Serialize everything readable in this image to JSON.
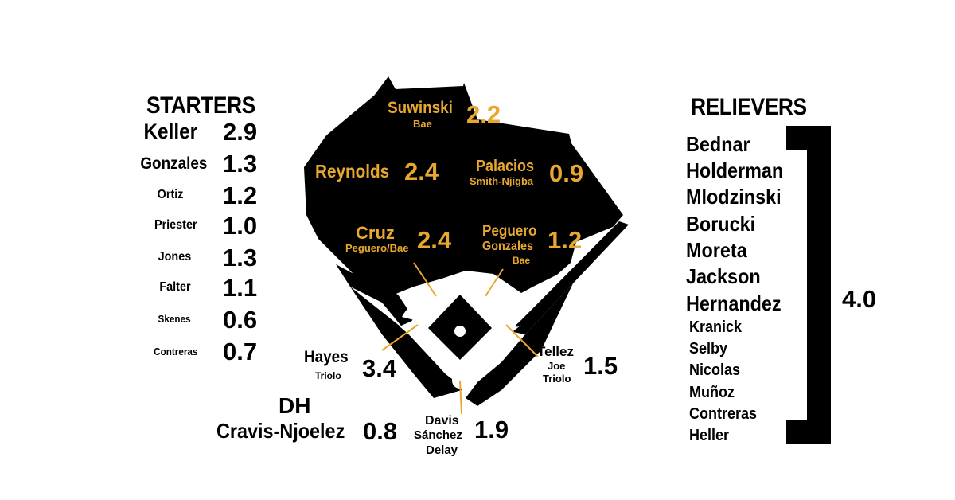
{
  "starters": {
    "title": "STARTERS",
    "rows": [
      {
        "name": "Keller",
        "war": "2.9"
      },
      {
        "name": "Gonzales",
        "war": "1.3"
      },
      {
        "name": "Ortiz",
        "war": "1.2"
      },
      {
        "name": "Priester",
        "war": "1.0"
      },
      {
        "name": "Jones",
        "war": "1.3"
      },
      {
        "name": "Falter",
        "war": "1.1"
      },
      {
        "name": "Skenes",
        "war": "0.6"
      },
      {
        "name": "Contreras",
        "war": "0.7"
      }
    ]
  },
  "relievers": {
    "title": "RELIEVERS",
    "names": [
      "Bednar",
      "Holderman",
      "Mlodzinski",
      "Borucki",
      "Moreta",
      "Jackson",
      "Hernandez",
      "Kranick",
      "Selby",
      "Nicolas",
      "Muñoz",
      "Contreras",
      "Heller"
    ],
    "total_war": "4.0"
  },
  "field": {
    "cf": {
      "name": "Suwinski",
      "sub": "Bae",
      "war": "2.2"
    },
    "lf": {
      "name": "Reynolds",
      "war": "2.4"
    },
    "rf": {
      "name": "Palacios",
      "sub": "Smith-Njigba",
      "war": "0.9"
    },
    "ss": {
      "name": "Cruz",
      "sub": "Peguero/Bae",
      "war": "2.4"
    },
    "2b": {
      "name": "Peguero",
      "sub": "Gonzales",
      "sub2": "Bae",
      "war": "1.2"
    },
    "3b": {
      "name": "Hayes",
      "sub": "Triolo",
      "war": "3.4"
    },
    "1b": {
      "name": "Tellez",
      "sub": "Joe",
      "sub2": "Triolo",
      "war": "1.5"
    },
    "c": {
      "name": "Davis",
      "sub": "Sánchez",
      "sub2": "Delay",
      "war": "1.9"
    },
    "dh": {
      "label": "DH",
      "name": "Cravis-Njoelez",
      "war": "0.8"
    }
  },
  "colors": {
    "field": "#000000",
    "infield": "#ffffff",
    "accent": "#e8a830",
    "text": "#000000"
  }
}
